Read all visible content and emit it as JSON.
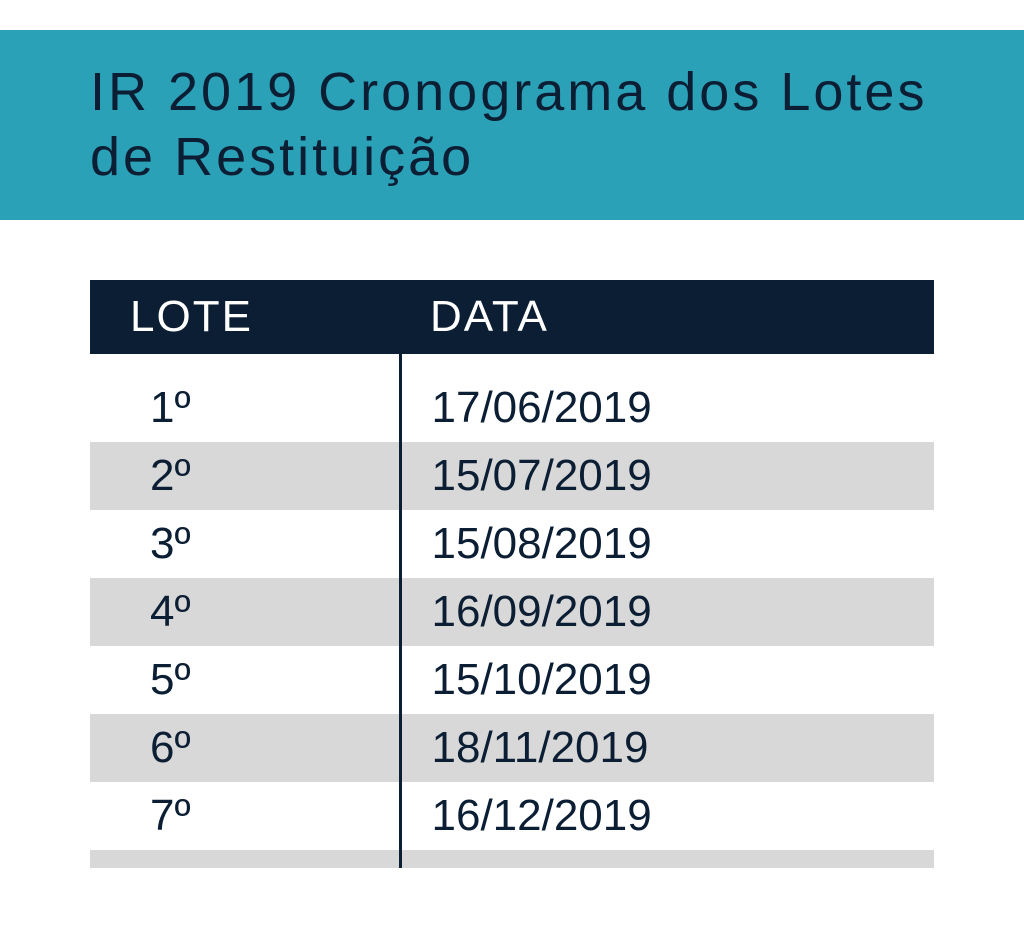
{
  "banner": {
    "title": "IR 2019  Cronograma dos Lotes de Restituição"
  },
  "table": {
    "columns": [
      "LOTE",
      "DATA"
    ],
    "rows": [
      {
        "lote": "1º",
        "data": "17/06/2019"
      },
      {
        "lote": "2º",
        "data": "15/07/2019"
      },
      {
        "lote": "3º",
        "data": "15/08/2019"
      },
      {
        "lote": "4º",
        "data": "16/09/2019"
      },
      {
        "lote": "5º",
        "data": "15/10/2019"
      },
      {
        "lote": "6º",
        "data": "18/11/2019"
      },
      {
        "lote": "7º",
        "data": "16/12/2019"
      }
    ]
  },
  "styling": {
    "banner_bg": "#2ba1b8",
    "text_dark": "#0b1e33",
    "header_bg": "#0b1e33",
    "header_text": "#ffffff",
    "row_odd_bg": "#ffffff",
    "row_even_bg": "#d8d8d8",
    "title_fontsize": 54,
    "header_fontsize": 44,
    "cell_fontsize": 44,
    "divider_width": 3,
    "lote_col_width": 310
  }
}
